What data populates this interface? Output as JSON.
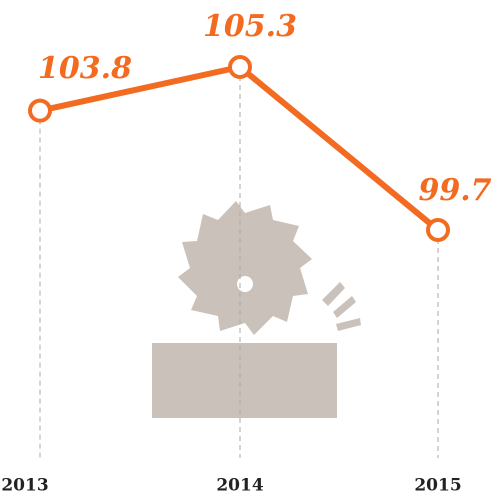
{
  "chart_data": {
    "type": "line",
    "categories": [
      "2013",
      "2014",
      "2015"
    ],
    "series": [
      {
        "color": "#f26b21",
        "values": [
          103.8,
          105.3,
          99.7
        ]
      }
    ]
  }
}
